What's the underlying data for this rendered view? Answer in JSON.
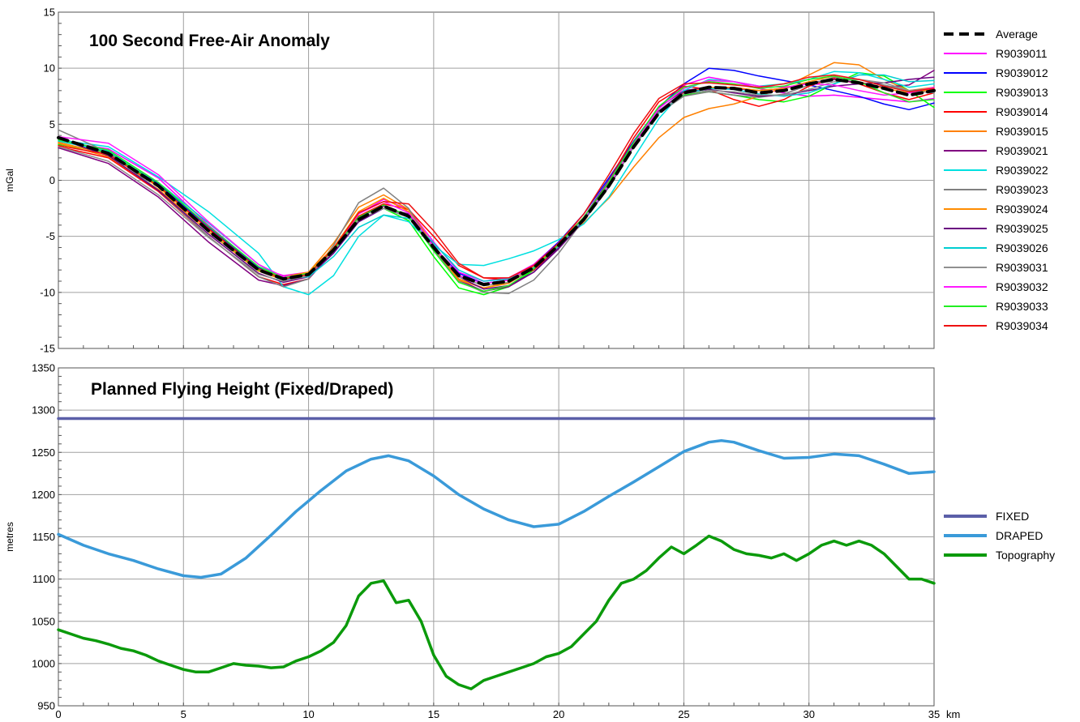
{
  "chart_data": [
    {
      "type": "line",
      "title": "100 Second Free-Air Anomaly",
      "xlabel": "",
      "ylabel": "mGal",
      "xlim": [
        0,
        35
      ],
      "ylim": [
        -15,
        15
      ],
      "xticks": [
        "0",
        "5",
        "10",
        "15",
        "20",
        "25",
        "30",
        "35"
      ],
      "yticks": [
        "15",
        "10",
        "5",
        "0",
        "-5",
        "-10",
        "-15"
      ],
      "grid": true,
      "legend_position": "right",
      "x": [
        0,
        2,
        4,
        6,
        8,
        9,
        10,
        11,
        12,
        13,
        14,
        15,
        16,
        17,
        18,
        19,
        20,
        21,
        22,
        23,
        24,
        25,
        26,
        27,
        28,
        29,
        30,
        31,
        32,
        33,
        34,
        35
      ],
      "series": [
        {
          "name": "Average",
          "color": "#000000",
          "dashed": true,
          "values": [
            3.8,
            2.4,
            -0.5,
            -4.5,
            -8.0,
            -8.8,
            -8.4,
            -6.2,
            -3.5,
            -2.3,
            -3.2,
            -6.0,
            -8.5,
            -9.3,
            -9.0,
            -7.8,
            -5.8,
            -3.5,
            -0.5,
            3.0,
            6.0,
            7.8,
            8.3,
            8.2,
            7.8,
            8.0,
            8.6,
            9.0,
            8.7,
            8.2,
            7.6,
            8.0
          ]
        },
        {
          "name": "R9039011",
          "color": "#ff00ff",
          "values": [
            3.5,
            2.8,
            0.2,
            -4.0,
            -7.8,
            -8.5,
            -8.2,
            -6.0,
            -3.0,
            -1.7,
            -2.6,
            -5.5,
            -8.2,
            -9.0,
            -8.7,
            -7.5,
            -5.5,
            -3.3,
            -0.4,
            3.2,
            6.5,
            8.5,
            9.2,
            8.8,
            8.2,
            7.8,
            7.5,
            7.6,
            7.4,
            7.2,
            7.0,
            7.3
          ]
        },
        {
          "name": "R9039012",
          "color": "#0000ff",
          "values": [
            3.8,
            2.4,
            -0.3,
            -4.2,
            -7.8,
            -8.9,
            -8.6,
            -6.5,
            -3.7,
            -2.5,
            -3.3,
            -6.0,
            -8.3,
            -9.2,
            -8.9,
            -7.6,
            -5.5,
            -3.0,
            0.2,
            3.5,
            6.5,
            8.6,
            10.0,
            9.8,
            9.3,
            8.9,
            8.5,
            8.0,
            7.5,
            6.8,
            6.3,
            6.9
          ]
        },
        {
          "name": "R9039013",
          "color": "#00ff00",
          "values": [
            3.2,
            2.5,
            -0.4,
            -4.4,
            -8.0,
            -8.8,
            -8.4,
            -6.4,
            -3.6,
            -2.5,
            -3.6,
            -6.8,
            -9.6,
            -10.2,
            -9.5,
            -8.0,
            -5.9,
            -3.6,
            -0.5,
            3.0,
            6.0,
            7.6,
            7.9,
            7.6,
            7.2,
            7.0,
            7.5,
            8.6,
            9.6,
            9.3,
            8.0,
            6.5
          ]
        },
        {
          "name": "R9039014",
          "color": "#ff0000",
          "values": [
            3.0,
            2.0,
            -1.0,
            -5.0,
            -8.6,
            -9.3,
            -8.8,
            -6.2,
            -3.2,
            -2.1,
            -2.6,
            -5.0,
            -7.6,
            -8.7,
            -8.9,
            -8.0,
            -6.0,
            -3.5,
            0.0,
            3.8,
            7.0,
            8.4,
            8.1,
            7.2,
            6.6,
            7.2,
            8.4,
            9.1,
            8.6,
            7.8,
            7.2,
            7.8
          ]
        },
        {
          "name": "R9039015",
          "color": "#ff8000",
          "values": [
            3.3,
            2.1,
            -0.8,
            -4.6,
            -8.1,
            -8.9,
            -8.2,
            -5.6,
            -2.4,
            -1.3,
            -2.6,
            -5.8,
            -8.8,
            -9.6,
            -9.2,
            -7.8,
            -5.7,
            -3.8,
            -1.6,
            1.2,
            3.8,
            5.6,
            6.4,
            6.8,
            7.5,
            8.3,
            9.4,
            10.5,
            10.3,
            9.0,
            8.0,
            8.3
          ]
        },
        {
          "name": "R9039021",
          "color": "#800080",
          "values": [
            2.9,
            1.5,
            -1.5,
            -5.5,
            -8.9,
            -9.4,
            -8.8,
            -6.3,
            -3.3,
            -2.3,
            -3.2,
            -6.1,
            -8.9,
            -9.9,
            -9.5,
            -8.2,
            -6.0,
            -3.3,
            0.0,
            3.4,
            6.5,
            8.0,
            8.3,
            8.2,
            8.0,
            8.2,
            8.7,
            9.0,
            8.7,
            8.3,
            8.5,
            9.8
          ]
        },
        {
          "name": "R9039022",
          "color": "#00e0e0",
          "values": [
            3.6,
            3.0,
            0.3,
            -2.8,
            -6.5,
            -9.5,
            -10.2,
            -8.5,
            -5.0,
            -3.1,
            -3.7,
            -5.8,
            -7.5,
            -7.6,
            -7.0,
            -6.3,
            -5.3,
            -3.9,
            -1.5,
            2.0,
            5.5,
            8.0,
            9.0,
            8.8,
            8.4,
            8.6,
            9.0,
            9.7,
            9.6,
            9.0,
            8.3,
            8.6
          ]
        },
        {
          "name": "R9039023",
          "color": "#808080",
          "values": [
            4.5,
            2.5,
            -0.9,
            -5.0,
            -8.6,
            -9.5,
            -8.8,
            -5.8,
            -2.0,
            -0.7,
            -2.5,
            -6.2,
            -9.0,
            -10.0,
            -10.1,
            -8.9,
            -6.5,
            -3.5,
            -0.1,
            3.3,
            6.0,
            7.5,
            7.9,
            7.6,
            7.4,
            7.7,
            8.5,
            9.2,
            9.0,
            8.5,
            8.0,
            8.2
          ]
        },
        {
          "name": "R9039024",
          "color": "#ff8c00",
          "values": [
            3.4,
            2.3,
            -0.6,
            -4.4,
            -7.9,
            -8.6,
            -8.2,
            -6.0,
            -2.8,
            -1.6,
            -2.8,
            -6.0,
            -8.9,
            -9.6,
            -9.1,
            -7.7,
            -5.6,
            -3.3,
            -0.3,
            3.0,
            6.0,
            7.8,
            8.3,
            8.3,
            8.0,
            8.2,
            8.8,
            9.3,
            8.8,
            8.2,
            7.8,
            8.1
          ]
        },
        {
          "name": "R9039025",
          "color": "#6a0080",
          "values": [
            3.7,
            2.2,
            -0.9,
            -4.8,
            -8.3,
            -9.1,
            -8.6,
            -6.5,
            -3.7,
            -2.5,
            -3.0,
            -5.8,
            -8.6,
            -9.7,
            -9.4,
            -8.2,
            -6.1,
            -3.6,
            -0.6,
            3.0,
            6.2,
            7.9,
            8.1,
            7.8,
            7.5,
            7.6,
            8.0,
            8.4,
            8.6,
            8.7,
            9.0,
            9.2
          ]
        },
        {
          "name": "R9039026",
          "color": "#00ced1",
          "values": [
            3.5,
            2.6,
            -0.2,
            -3.8,
            -7.5,
            -8.8,
            -8.6,
            -6.8,
            -4.2,
            -3.1,
            -3.4,
            -5.6,
            -8.0,
            -9.0,
            -8.8,
            -7.8,
            -5.9,
            -3.5,
            -0.5,
            3.0,
            6.0,
            7.7,
            8.2,
            8.1,
            7.7,
            7.5,
            7.8,
            8.6,
            9.4,
            9.4,
            8.8,
            8.9
          ]
        },
        {
          "name": "R9039031",
          "color": "#909090",
          "values": [
            3.0,
            1.7,
            -1.3,
            -5.1,
            -8.4,
            -9.0,
            -8.5,
            -6.3,
            -3.5,
            -2.5,
            -3.3,
            -6.0,
            -8.6,
            -9.4,
            -9.1,
            -7.9,
            -5.8,
            -3.4,
            -0.5,
            3.0,
            6.1,
            7.7,
            8.0,
            7.9,
            7.6,
            7.6,
            8.1,
            8.8,
            9.0,
            8.7,
            8.0,
            7.8
          ]
        },
        {
          "name": "R9039032",
          "color": "#ff1aff",
          "values": [
            3.9,
            3.3,
            0.5,
            -3.7,
            -7.5,
            -8.6,
            -8.4,
            -6.1,
            -3.0,
            -1.9,
            -2.9,
            -5.9,
            -8.5,
            -9.2,
            -8.9,
            -7.6,
            -5.6,
            -3.4,
            -0.4,
            3.2,
            6.4,
            8.2,
            8.9,
            8.8,
            8.4,
            8.3,
            8.6,
            8.5,
            8.0,
            7.6,
            7.8,
            8.3
          ]
        },
        {
          "name": "R9039033",
          "color": "#22ee22",
          "values": [
            3.6,
            2.7,
            -0.2,
            -4.1,
            -7.7,
            -8.7,
            -8.3,
            -6.2,
            -3.3,
            -2.2,
            -3.2,
            -6.3,
            -9.1,
            -9.9,
            -9.4,
            -7.9,
            -5.7,
            -3.3,
            -0.2,
            3.4,
            6.6,
            8.3,
            8.8,
            8.6,
            8.2,
            8.4,
            9.0,
            9.3,
            8.8,
            7.8,
            7.0,
            7.2
          ]
        },
        {
          "name": "R9039034",
          "color": "#ee1111",
          "values": [
            3.1,
            2.3,
            -0.5,
            -4.3,
            -7.9,
            -8.8,
            -8.4,
            -6.1,
            -2.9,
            -1.9,
            -2.1,
            -4.5,
            -7.4,
            -8.7,
            -8.7,
            -7.6,
            -5.6,
            -3.0,
            0.5,
            4.2,
            7.3,
            8.6,
            8.7,
            8.5,
            8.3,
            8.6,
            9.2,
            9.4,
            9.0,
            8.4,
            7.9,
            8.2
          ]
        }
      ]
    },
    {
      "type": "line",
      "title": "Planned Flying Height (Fixed/Draped)",
      "xlabel": "km",
      "ylabel": "metres",
      "xlim": [
        0,
        35
      ],
      "ylim": [
        950,
        1350
      ],
      "xticks": [
        "0",
        "5",
        "10",
        "15",
        "20",
        "25",
        "30",
        "35"
      ],
      "yticks": [
        "1350",
        "1300",
        "1250",
        "1200",
        "1150",
        "1100",
        "1050",
        "1000",
        "950"
      ],
      "grid": true,
      "legend_position": "right",
      "series": [
        {
          "name": "FIXED",
          "color": "#5b5fa8",
          "x": [
            0,
            35
          ],
          "values": [
            1290,
            1290
          ]
        },
        {
          "name": "DRAPED",
          "color": "#3a9ad9",
          "x": [
            0,
            1,
            2,
            3,
            4,
            5,
            5.7,
            6.5,
            7.5,
            8.5,
            9.5,
            10.5,
            11.5,
            12.5,
            13.2,
            14,
            15,
            16,
            17,
            18,
            19,
            20,
            21,
            22,
            23,
            24,
            25,
            26,
            26.5,
            27,
            28,
            29,
            30,
            31,
            32,
            33,
            34,
            35
          ],
          "values": [
            1153,
            1140,
            1130,
            1122,
            1112,
            1104,
            1102,
            1106,
            1125,
            1152,
            1180,
            1205,
            1228,
            1242,
            1246,
            1240,
            1222,
            1200,
            1183,
            1170,
            1162,
            1165,
            1180,
            1198,
            1215,
            1233,
            1251,
            1262,
            1264,
            1262,
            1252,
            1243,
            1244,
            1248,
            1246,
            1236,
            1225,
            1227
          ]
        },
        {
          "name": "Topography",
          "color": "#0b9a0b",
          "x": [
            0,
            0.5,
            1,
            1.5,
            2,
            2.5,
            3,
            3.5,
            4,
            4.5,
            5,
            5.5,
            6,
            6.5,
            7,
            7.5,
            8,
            8.5,
            9,
            9.5,
            10,
            10.5,
            11,
            11.5,
            12,
            12.5,
            13,
            13.5,
            14,
            14.5,
            15,
            15.5,
            16,
            16.5,
            17,
            17.5,
            18,
            18.5,
            19,
            19.5,
            20,
            20.5,
            21,
            21.5,
            22,
            22.5,
            23,
            23.5,
            24,
            24.5,
            25,
            25.5,
            26,
            26.5,
            27,
            27.5,
            28,
            28.5,
            29,
            29.5,
            30,
            30.5,
            31,
            31.5,
            32,
            32.5,
            33,
            33.5,
            34,
            34.5,
            35
          ],
          "values": [
            1040,
            1035,
            1030,
            1027,
            1023,
            1018,
            1015,
            1010,
            1003,
            998,
            993,
            990,
            990,
            995,
            1000,
            998,
            997,
            995,
            996,
            1003,
            1008,
            1015,
            1025,
            1045,
            1080,
            1095,
            1098,
            1072,
            1075,
            1050,
            1010,
            985,
            975,
            970,
            980,
            985,
            990,
            995,
            1000,
            1008,
            1012,
            1020,
            1035,
            1050,
            1075,
            1095,
            1100,
            1110,
            1125,
            1138,
            1130,
            1140,
            1151,
            1145,
            1135,
            1130,
            1128,
            1125,
            1130,
            1122,
            1130,
            1140,
            1145,
            1140,
            1145,
            1140,
            1130,
            1115,
            1100,
            1100,
            1095
          ]
        }
      ]
    }
  ]
}
